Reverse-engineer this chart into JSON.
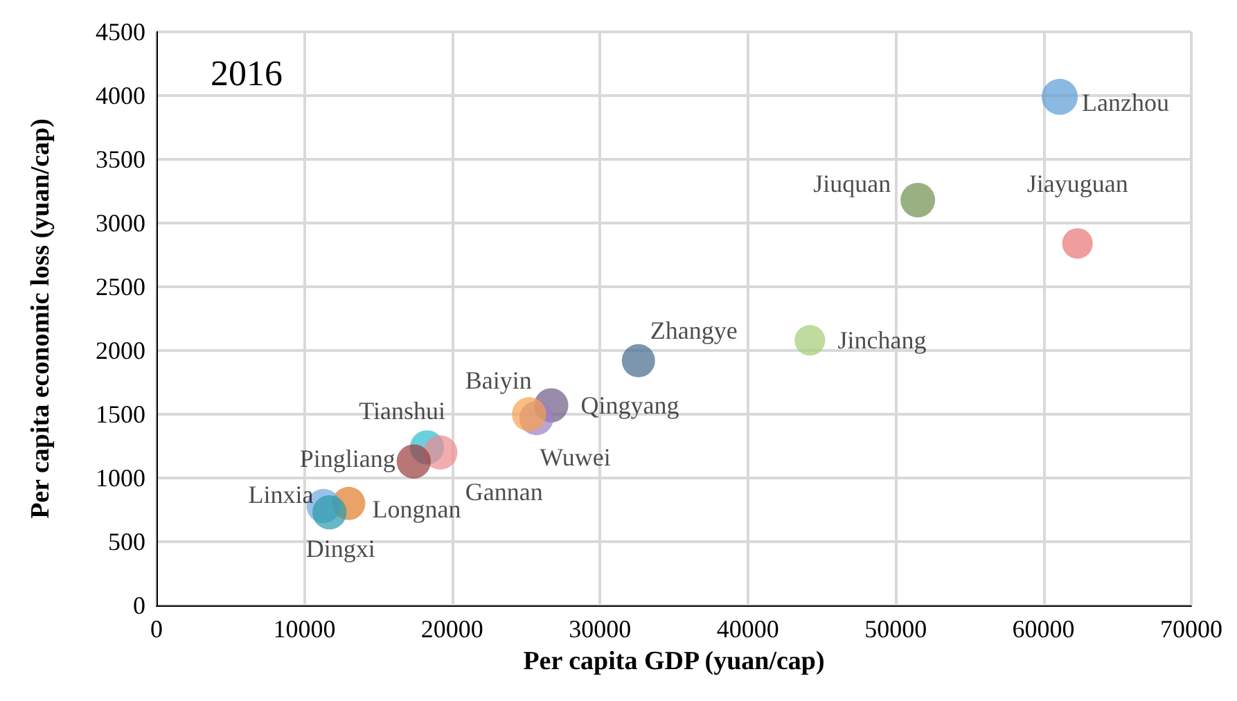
{
  "chart_data": {
    "type": "bubble",
    "xlabel": "Per capita GDP (yuan/cap)",
    "ylabel": "Per capita economic loss (yuan/cap)",
    "annotations": [
      "2016"
    ],
    "xlim": [
      0,
      70000
    ],
    "xticks": [
      0,
      10000,
      20000,
      30000,
      40000,
      50000,
      60000,
      70000
    ],
    "ylim": [
      0,
      4500
    ],
    "yticks": [
      0,
      500,
      1000,
      1500,
      2000,
      2500,
      3000,
      3500,
      4000,
      4500
    ],
    "grid": true,
    "legend": false,
    "series": [
      {
        "name": "Lanzhou",
        "color": "#5b9bd5",
        "x": [
          61100
        ],
        "values": [
          3990
        ],
        "sizes": [
          1
        ]
      },
      {
        "name": "Jiuquan",
        "color": "#6e8f4e",
        "x": [
          51500
        ],
        "values": [
          3180
        ],
        "sizes": [
          0.92
        ]
      },
      {
        "name": "Jiayuguan",
        "color": "#e87474",
        "x": [
          62300
        ],
        "values": [
          2840
        ],
        "sizes": [
          0.72
        ]
      },
      {
        "name": "Jinchang",
        "color": "#a4cc74",
        "x": [
          44200
        ],
        "values": [
          2080
        ],
        "sizes": [
          0.72
        ]
      },
      {
        "name": "Zhangye",
        "color": "#44698f",
        "x": [
          32600
        ],
        "values": [
          1920
        ],
        "sizes": [
          0.85
        ]
      },
      {
        "name": "Qingyang",
        "color": "#6e5a86",
        "x": [
          26700
        ],
        "values": [
          1570
        ],
        "sizes": [
          0.9
        ]
      },
      {
        "name": "Wuwei",
        "color": "#9b7fc0",
        "x": [
          25700
        ],
        "values": [
          1470
        ],
        "sizes": [
          0.9
        ]
      },
      {
        "name": "Baiyin",
        "color": "#f9a050",
        "x": [
          25200
        ],
        "values": [
          1500
        ],
        "sizes": [
          0.9
        ]
      },
      {
        "name": "Tianshui",
        "color": "#2cbcd0",
        "x": [
          18300
        ],
        "values": [
          1240
        ],
        "sizes": [
          0.9
        ]
      },
      {
        "name": "Gannan",
        "color": "#ee8a8e",
        "x": [
          19200
        ],
        "values": [
          1200
        ],
        "sizes": [
          0.9
        ]
      },
      {
        "name": "Pingliang",
        "color": "#9a3c3c",
        "x": [
          17400
        ],
        "values": [
          1130
        ],
        "sizes": [
          0.9
        ]
      },
      {
        "name": "Longnan",
        "color": "#e07c2a",
        "x": [
          13000
        ],
        "values": [
          800
        ],
        "sizes": [
          0.85
        ]
      },
      {
        "name": "Linxia",
        "color": "#6ca6de",
        "x": [
          11300
        ],
        "values": [
          780
        ],
        "sizes": [
          0.9
        ]
      },
      {
        "name": "Dingxi",
        "color": "#2a9aab",
        "x": [
          11700
        ],
        "values": [
          730
        ],
        "sizes": [
          0.9
        ]
      }
    ]
  }
}
